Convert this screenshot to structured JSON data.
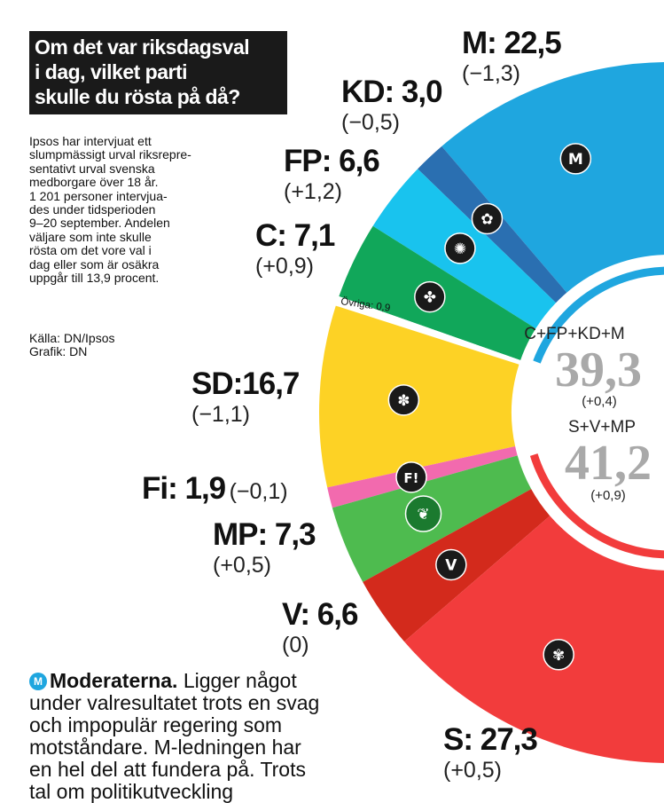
{
  "title": {
    "lines": [
      "Om det var riksdagsval",
      "i dag, vilket parti",
      "skulle du rösta på då?"
    ]
  },
  "intro": "Ipsos har intervjuat ett\nslumpmässigt urval riksrepre-\nsentativt urval svenska\nmedborgare över 18 år.\n1 201 personer intervjua-\ndes under tidsperioden\n9–20 september. Andelen\nväljare som inte skulle\nrösta om det vore val i\ndag eller som är osäkra\nuppgår till 13,9 procent.",
  "source": "Källa: DN/Ipsos\nGrafik: DN",
  "chart_data": {
    "type": "pie",
    "title": "Om det var riksdagsval i dag, vilket parti skulle du rösta på då?",
    "slices": [
      {
        "key": "M",
        "label": "M: 22,5",
        "value": 22.5,
        "change": "(−1,3)",
        "color": "#1fa6df",
        "icon": "moderaterna-logo-icon"
      },
      {
        "key": "KD",
        "label": "KD: 3,0",
        "value": 3.0,
        "change": "(−0,5)",
        "color": "#2a6fb1",
        "icon": "kd-flower-logo-icon"
      },
      {
        "key": "FP",
        "label": "FP: 6,6",
        "value": 6.6,
        "change": "(+1,2)",
        "color": "#19c3ee",
        "icon": "fp-logo-icon"
      },
      {
        "key": "C",
        "label": "C: 7,1",
        "value": 7.1,
        "change": "(+0,9)",
        "color": "#11a75a",
        "icon": "centerpartiet-clover-icon"
      },
      {
        "key": "Ovr",
        "label": "Övriga: 0,9",
        "value": 0.9,
        "change": "",
        "color": "#ffffff",
        "icon": ""
      },
      {
        "key": "SD",
        "label": "SD:16,7",
        "value": 16.7,
        "change": "(−1,1)",
        "color": "#fdd225",
        "icon": "sd-flower-logo-icon"
      },
      {
        "key": "Fi",
        "label": "Fi: 1,9",
        "value": 1.9,
        "change": "(−0,1)",
        "color": "#f26aae",
        "icon": "fi-logo-icon"
      },
      {
        "key": "MP",
        "label": "MP: 7,3",
        "value": 7.3,
        "change": "(+0,5)",
        "color": "#4ebb4f",
        "icon": "mp-dandelion-logo-icon"
      },
      {
        "key": "V",
        "label": "V: 6,6",
        "value": 6.6,
        "change": "(0)",
        "color": "#d32a1c",
        "icon": "vansterpartiet-logo-icon"
      },
      {
        "key": "S",
        "label": "S: 27,3",
        "value": 27.3,
        "change": "(+0,5)",
        "color": "#f23c3c",
        "icon": "sap-rose-logo-icon"
      }
    ],
    "blocs": [
      {
        "label": "C+FP+KD+M",
        "value": "39,3",
        "change": "(+0,4)",
        "color": "#1fa6df"
      },
      {
        "label": "S+V+MP",
        "value": "41,2",
        "change": "(+0,9)",
        "color": "#f23c3c"
      }
    ]
  },
  "note": {
    "badge": "M",
    "heading": "Moderaterna.",
    "text": "Ligger något under valresultatet trots en svag och impopulär regering som motståndare. M-ledningen har en hel del att fundera på. Trots tal om politikutveckling"
  }
}
